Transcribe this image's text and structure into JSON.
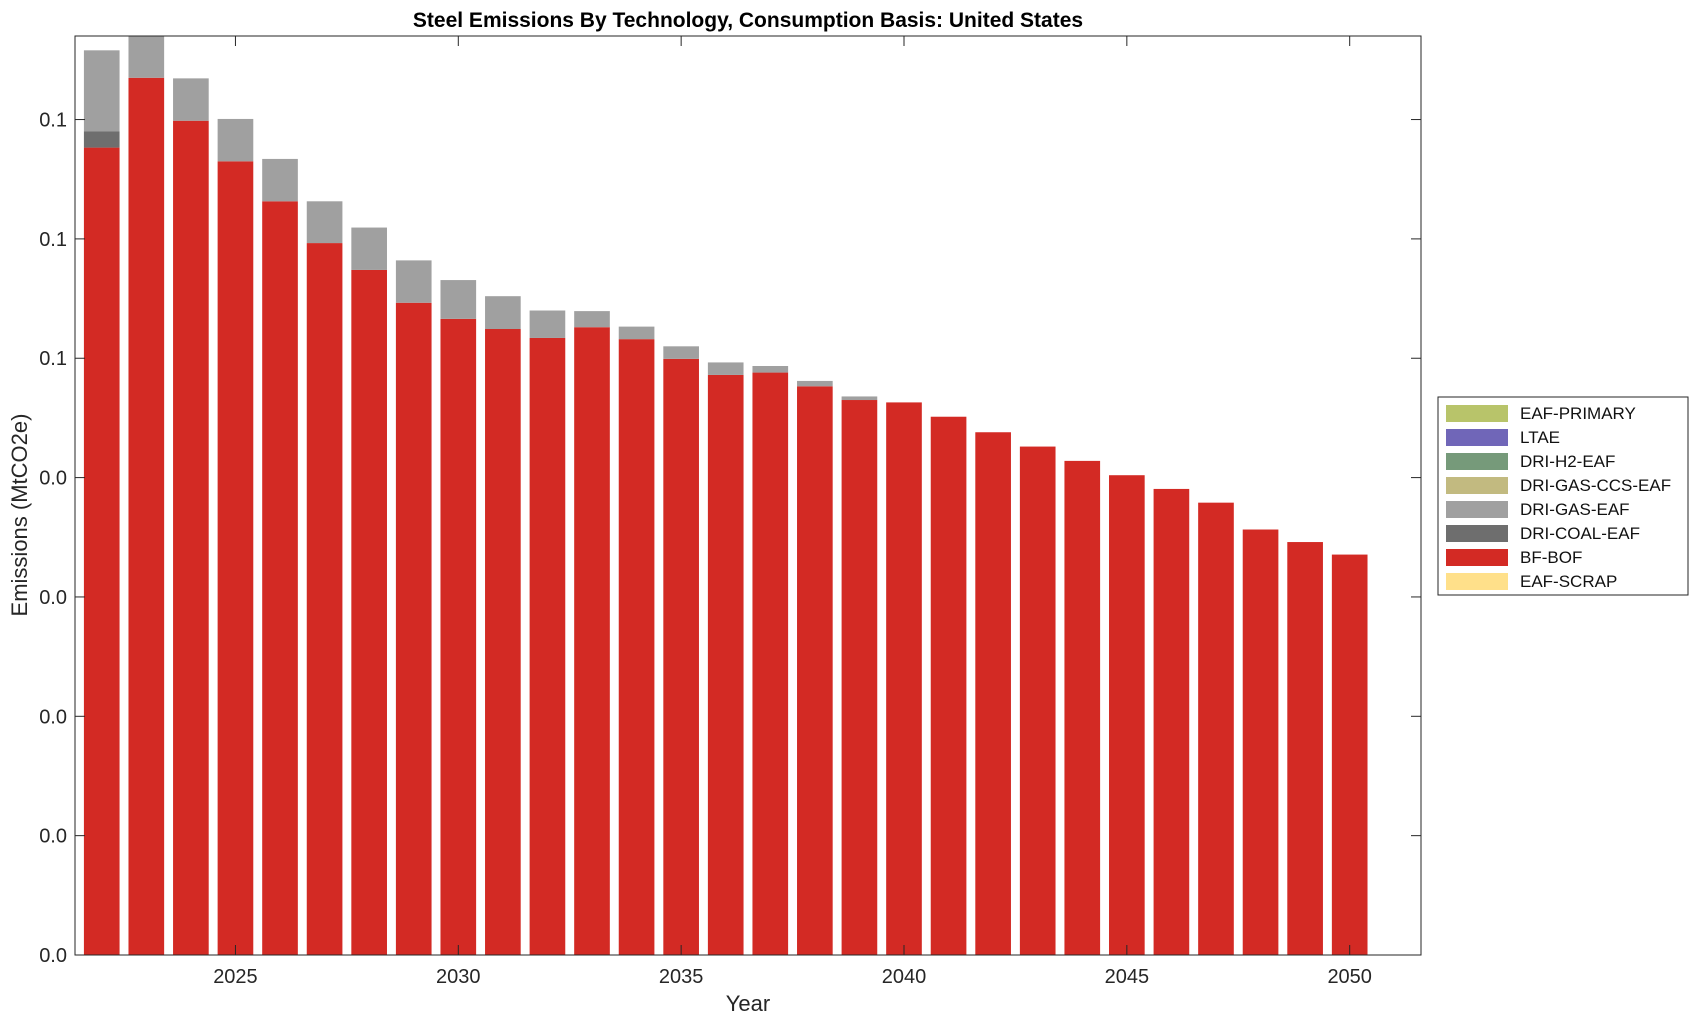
{
  "chart_data": {
    "type": "bar",
    "stacked": true,
    "title": "Steel Emissions By Technology, Consumption Basis: United States",
    "xlabel": "Year",
    "ylabel": "Emissions (MtCO2e)",
    "ylim": [
      0,
      0.154
    ],
    "xlim": [
      2021.4,
      2051.6
    ],
    "grid": false,
    "legend_position": "outside-right",
    "x_ticks": [
      2025,
      2030,
      2035,
      2040,
      2045,
      2050
    ],
    "x_tick_labels": [
      "2025",
      "2030",
      "2035",
      "2040",
      "2045",
      "2050"
    ],
    "y_ticks": [
      0,
      0.02,
      0.04,
      0.06,
      0.08,
      0.1,
      0.12,
      0.14
    ],
    "y_tick_labels": [
      "0.0",
      "0.0",
      "0.0",
      "0.0",
      "0.0",
      "0.1",
      "0.1",
      "0.1"
    ],
    "categories": [
      2022,
      2023,
      2024,
      2025,
      2026,
      2027,
      2028,
      2029,
      2030,
      2031,
      2032,
      2033,
      2034,
      2035,
      2036,
      2037,
      2038,
      2039,
      2040,
      2041,
      2042,
      2043,
      2044,
      2045,
      2046,
      2047,
      2048,
      2049,
      2050
    ],
    "series": [
      {
        "name": "EAF-SCRAP",
        "color": "#FFE08A",
        "values": [
          0,
          0,
          0,
          0,
          0,
          0,
          0,
          0,
          0,
          0,
          0,
          0,
          0,
          0,
          0,
          0,
          0,
          0,
          0,
          0,
          0,
          0,
          0,
          0,
          0,
          0,
          0,
          0,
          0
        ]
      },
      {
        "name": "BF-BOF",
        "color": "#D32A24",
        "values": [
          0.1353,
          0.147,
          0.1398,
          0.133,
          0.1263,
          0.1193,
          0.1148,
          0.1093,
          0.1066,
          0.1049,
          0.1034,
          0.1052,
          0.1032,
          0.0999,
          0.0972,
          0.0976,
          0.0953,
          0.093,
          0.0926,
          0.0902,
          0.0876,
          0.0852,
          0.0828,
          0.0804,
          0.0781,
          0.0758,
          0.0713,
          0.0692,
          0.0671
        ]
      },
      {
        "name": "DRI-COAL-EAF",
        "color": "#6E6E6E",
        "values": [
          0.0027,
          0,
          0,
          0,
          0,
          0,
          0,
          0,
          0,
          0,
          0,
          0,
          0,
          0,
          0,
          0,
          0,
          0,
          0,
          0,
          0,
          0,
          0,
          0,
          0,
          0,
          0,
          0,
          0
        ]
      },
      {
        "name": "DRI-GAS-EAF",
        "color": "#A0A0A0",
        "values": [
          0.0136,
          0.0071,
          0.0071,
          0.0071,
          0.0071,
          0.007,
          0.0071,
          0.0071,
          0.0065,
          0.0055,
          0.0046,
          0.0027,
          0.0021,
          0.0021,
          0.0021,
          0.0011,
          0.0009,
          0.0006,
          0,
          0,
          0,
          0,
          0,
          0,
          0,
          0,
          0,
          0,
          0
        ]
      },
      {
        "name": "DRI-GAS-CCS-EAF",
        "color": "#C2BA80",
        "values": [
          0,
          0,
          0,
          0,
          0,
          0,
          0,
          0,
          0,
          0,
          0,
          0,
          0,
          0,
          0,
          0,
          0,
          0,
          0,
          0,
          0,
          0,
          0,
          0,
          0,
          0,
          0,
          0,
          0
        ]
      },
      {
        "name": "DRI-H2-EAF",
        "color": "#769A7A",
        "values": [
          0,
          0,
          0,
          0,
          0,
          0,
          0,
          0,
          0,
          0,
          0,
          0,
          0,
          0,
          0,
          0,
          0,
          0,
          0,
          0,
          0,
          0,
          0,
          0,
          0,
          0,
          0,
          0,
          0
        ]
      },
      {
        "name": "LTAE",
        "color": "#7066B8",
        "values": [
          0,
          0,
          0,
          0,
          0,
          0,
          0,
          0,
          0,
          0,
          0,
          0,
          0,
          0,
          0,
          0,
          0,
          0,
          0,
          0,
          0,
          0,
          0,
          0,
          0,
          0,
          0,
          0,
          0
        ]
      },
      {
        "name": "EAF-PRIMARY",
        "color": "#B8C46A",
        "values": [
          0,
          0,
          0,
          0,
          0,
          0,
          0,
          0,
          0,
          0,
          0,
          0,
          0,
          0,
          0,
          0,
          0,
          0,
          0,
          0,
          0,
          0,
          0,
          0,
          0,
          0,
          0,
          0,
          0
        ]
      }
    ],
    "legend_order": [
      "EAF-PRIMARY",
      "LTAE",
      "DRI-H2-EAF",
      "DRI-GAS-CCS-EAF",
      "DRI-GAS-EAF",
      "DRI-COAL-EAF",
      "BF-BOF",
      "EAF-SCRAP"
    ]
  }
}
